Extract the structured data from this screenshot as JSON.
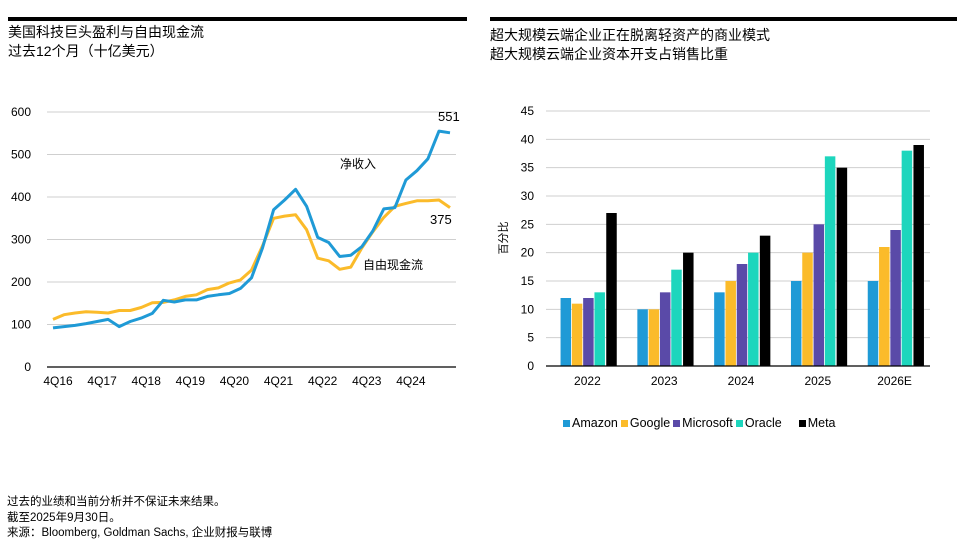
{
  "left": {
    "title": "美国科技巨头盈利与自由现金流",
    "subtitle": "过去12个月（十亿美元）"
  },
  "right": {
    "title": "超大规模云端企业正在脱离轻资产的商业模式",
    "subtitle": "超大规模云端企业资本开支占销售比重"
  },
  "footer": {
    "disclaimer": "过去的业绩和当前分析并不保证未来结果。",
    "asof": "截至2025年9月30日。",
    "source": "来源：Bloomberg, Goldman Sachs, 企业财报与联博"
  },
  "chart_data": [
    {
      "type": "line",
      "title": "美国科技巨头盈利与自由现金流",
      "ylim": [
        0,
        600
      ],
      "yticks": [
        "0",
        "100",
        "200",
        "300",
        "400",
        "500",
        "600"
      ],
      "xtick_labels": [
        "4Q16",
        "4Q17",
        "4Q18",
        "4Q19",
        "4Q20",
        "4Q21",
        "4Q22",
        "4Q23",
        "4Q24"
      ],
      "series": [
        {
          "name": "净收入",
          "color": "#1f9ad6",
          "end_label": "551",
          "values": [
            92,
            95,
            98,
            102,
            107,
            112,
            95,
            107,
            115,
            126,
            157,
            153,
            158,
            158,
            166,
            170,
            173,
            185,
            210,
            280,
            370,
            393,
            418,
            378,
            305,
            293,
            260,
            263,
            283,
            320,
            372,
            375,
            440,
            462,
            490,
            555,
            551
          ]
        },
        {
          "name": "自由现金流",
          "color": "#fbbb2a",
          "end_label": "375",
          "values": [
            112,
            123,
            127,
            130,
            129,
            127,
            133,
            133,
            140,
            151,
            152,
            158,
            166,
            170,
            182,
            186,
            198,
            205,
            228,
            285,
            350,
            355,
            358,
            323,
            256,
            250,
            230,
            235,
            280,
            318,
            352,
            378,
            385,
            391,
            391,
            393,
            375
          ]
        }
      ],
      "grid": true
    },
    {
      "type": "bar",
      "title": "超大规模云端企业资本开支占销售比重",
      "ylabel": "百分比",
      "ylim": [
        0,
        45
      ],
      "yticks": [
        "0",
        "5",
        "10",
        "15",
        "20",
        "25",
        "30",
        "35",
        "40",
        "45"
      ],
      "categories": [
        "2022",
        "2023",
        "2024",
        "2025",
        "2026E"
      ],
      "series": [
        {
          "name": "Amazon",
          "color": "#1f9ad6",
          "values": [
            12,
            10,
            13,
            15,
            15
          ]
        },
        {
          "name": "Google",
          "color": "#fbbb2a",
          "values": [
            11,
            10,
            15,
            20,
            21
          ]
        },
        {
          "name": "Microsoft",
          "color": "#5a4aa8",
          "values": [
            12,
            13,
            18,
            25,
            24
          ]
        },
        {
          "name": "Oracle",
          "color": "#1dd6bd",
          "values": [
            13,
            17,
            20,
            37,
            38
          ]
        },
        {
          "name": "Meta",
          "color": "#000000",
          "values": [
            27,
            20,
            23,
            35,
            39
          ]
        }
      ],
      "legend": "bottom",
      "grid": true
    }
  ]
}
